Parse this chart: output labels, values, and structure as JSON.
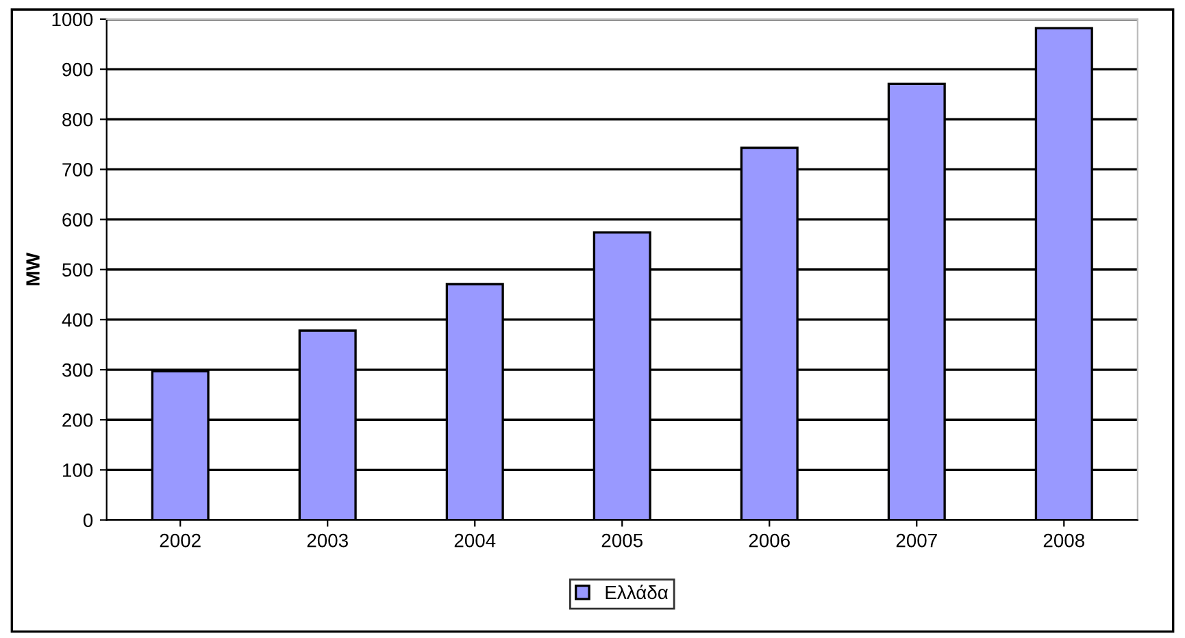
{
  "chart_data": {
    "type": "bar",
    "ylabel": "MW",
    "categories": [
      "2002",
      "2003",
      "2004",
      "2005",
      "2006",
      "2007",
      "2008"
    ],
    "series": [
      {
        "name": "Ελλάδα",
        "color": "#9999ff",
        "values": [
          297,
          378,
          471,
          574,
          743,
          871,
          982
        ]
      }
    ],
    "ylim": [
      0,
      1000
    ],
    "yticks": [
      0,
      100,
      200,
      300,
      400,
      500,
      600,
      700,
      800,
      900,
      1000
    ],
    "grid": "y",
    "legend": "bottom"
  }
}
